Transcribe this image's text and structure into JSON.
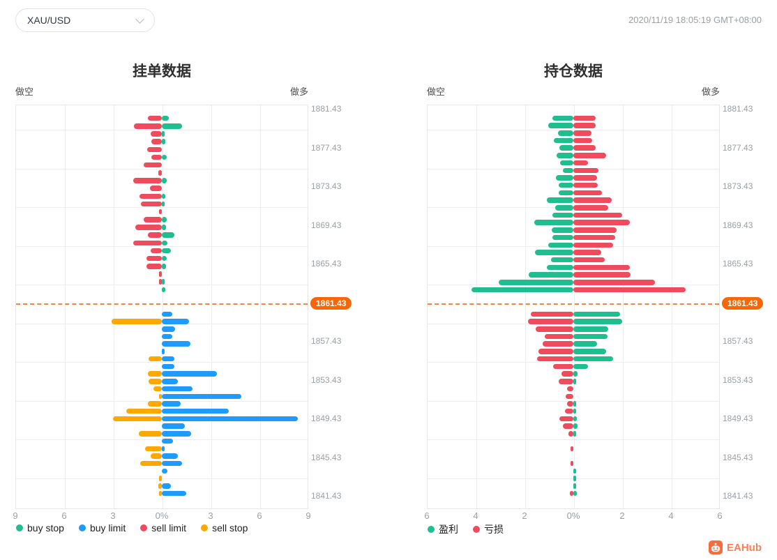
{
  "header": {
    "symbol_select": {
      "value": "XAU/USD"
    },
    "timestamp": "2020/11/19 18:05:19 GMT+08:00"
  },
  "brand": {
    "name": "EAHub"
  },
  "colors": {
    "teal": "#1fbe8f",
    "red": "#f04a5d",
    "blue": "#1e9bff",
    "orange": "#ffa800",
    "current_price_line": "#fb8043",
    "current_price_badge": "#fa6607",
    "grid": "#ededed",
    "axis_text": "#9aa0a6"
  },
  "chart_data": [
    {
      "type": "bar",
      "variant": "bidirectional-horizontal-pyramid",
      "title": "挂单数据",
      "short_label": "做空",
      "long_label": "做多",
      "x_ticks": [
        "9",
        "6",
        "3",
        "0%",
        "3",
        "6",
        "9"
      ],
      "x_max": 9,
      "price_labels": [
        "1881.43",
        "1877.43",
        "1873.43",
        "1869.43",
        "1865.43",
        "1857.43",
        "1853.43",
        "1849.43",
        "1845.43",
        "1841.43"
      ],
      "current_price": "1861.43",
      "legend": [
        {
          "name": "buy stop",
          "color": "#1fbe8f"
        },
        {
          "name": "buy limit",
          "color": "#1e9bff"
        },
        {
          "name": "sell limit",
          "color": "#f04a5d"
        },
        {
          "name": "sell stop",
          "color": "#ffa800"
        }
      ],
      "above_line": {
        "left_series": "sell limit",
        "right_series": "buy stop",
        "rows": [
          [
            0.87,
            0.42
          ],
          [
            1.73,
            1.24
          ],
          [
            0.69,
            0.17
          ],
          [
            0.63,
            0.23
          ],
          [
            0.9,
            0
          ],
          [
            0.63,
            0.31
          ],
          [
            1.12,
            0
          ],
          [
            0.23,
            0
          ],
          [
            1.76,
            0.3
          ],
          [
            0.73,
            0
          ],
          [
            1.37,
            0.2
          ],
          [
            1.3,
            0.15
          ],
          [
            0.1,
            0
          ],
          [
            1.1,
            0.3
          ],
          [
            1.65,
            0.25
          ],
          [
            0.85,
            0.75
          ],
          [
            1.75,
            0.35
          ],
          [
            0.7,
            0.55
          ],
          [
            0.95,
            0.3
          ],
          [
            0.95,
            0.25
          ],
          [
            0.1,
            0
          ],
          [
            0.1,
            0.05
          ],
          [
            0,
            0.2
          ]
        ]
      },
      "below_line": {
        "left_series": "sell stop",
        "right_series": "buy limit",
        "rows": [
          [
            0,
            0.65
          ],
          [
            3.1,
            1.65
          ],
          [
            0,
            0.8
          ],
          [
            0,
            0.65
          ],
          [
            0,
            1.75
          ],
          [
            0,
            0.1
          ],
          [
            0.8,
            0.78
          ],
          [
            0,
            0.78
          ],
          [
            0.85,
            3.4
          ],
          [
            0.8,
            1.0
          ],
          [
            0.5,
            1.9
          ],
          [
            0.1,
            4.9
          ],
          [
            0.85,
            1.15
          ],
          [
            2.2,
            4.1
          ],
          [
            3.0,
            8.35
          ],
          [
            0,
            1.4
          ],
          [
            1.43,
            1.8
          ],
          [
            0,
            0.67
          ],
          [
            1.05,
            0.1
          ],
          [
            0.7,
            1.0
          ],
          [
            1.33,
            1.25
          ],
          [
            0,
            0.35
          ],
          [
            0.15,
            0
          ],
          [
            0.2,
            0.55
          ],
          [
            0.1,
            1.5
          ]
        ]
      }
    },
    {
      "type": "bar",
      "variant": "bidirectional-horizontal-pyramid",
      "title": "持仓数据",
      "short_label": "做空",
      "long_label": "做多",
      "x_ticks": [
        "6",
        "4",
        "2",
        "0%",
        "2",
        "4",
        "6"
      ],
      "x_max": 6,
      "price_labels": [
        "1881.43",
        "1877.43",
        "1873.43",
        "1869.43",
        "1865.43",
        "1857.43",
        "1853.43",
        "1849.43",
        "1845.43",
        "1841.43"
      ],
      "current_price": "1861.43",
      "legend": [
        {
          "name": "盈利",
          "color": "#1fbe8f"
        },
        {
          "name": "亏损",
          "color": "#f04a5d"
        }
      ],
      "above_line": {
        "left_series": "盈利",
        "right_series": "亏损",
        "rows": [
          [
            0.86,
            0.91
          ],
          [
            1.02,
            0.91
          ],
          [
            0.64,
            0.75
          ],
          [
            0.8,
            0.77
          ],
          [
            0.56,
            0.92
          ],
          [
            0.7,
            1.35
          ],
          [
            0.53,
            0.6
          ],
          [
            0.42,
            1.03
          ],
          [
            0.71,
            0.98
          ],
          [
            0.6,
            1.0
          ],
          [
            0.6,
            1.18
          ],
          [
            1.1,
            1.58
          ],
          [
            0.75,
            1.44
          ],
          [
            0.85,
            2.0
          ],
          [
            1.6,
            2.3
          ],
          [
            0.88,
            1.77
          ],
          [
            0.87,
            1.7
          ],
          [
            1.03,
            1.64
          ],
          [
            1.56,
            1.15
          ],
          [
            0.91,
            1.28
          ],
          [
            1.09,
            2.32
          ],
          [
            1.84,
            2.35
          ],
          [
            3.06,
            3.34
          ],
          [
            4.18,
            4.6
          ]
        ]
      },
      "below_line": {
        "left_series": "亏损",
        "right_series": "盈利",
        "rows": [
          [
            1.74,
            1.92
          ],
          [
            1.87,
            2.0
          ],
          [
            1.55,
            1.44
          ],
          [
            1.18,
            1.4
          ],
          [
            1.25,
            0.97
          ],
          [
            1.44,
            1.35
          ],
          [
            1.49,
            1.64
          ],
          [
            0.82,
            0.59
          ],
          [
            0.49,
            0.16
          ],
          [
            0.6,
            0.08
          ],
          [
            0.27,
            0
          ],
          [
            0.31,
            0
          ],
          [
            0.27,
            0.08
          ],
          [
            0.35,
            0.05
          ],
          [
            0.56,
            0.14
          ],
          [
            0.44,
            0.17
          ],
          [
            0.21,
            0.05
          ],
          [
            0,
            0
          ],
          [
            0.05,
            0
          ],
          [
            0,
            0
          ],
          [
            0.05,
            0
          ],
          [
            0,
            0.05
          ],
          [
            0,
            0.08
          ],
          [
            0,
            0.12
          ],
          [
            0.15,
            0.15
          ]
        ]
      }
    }
  ]
}
